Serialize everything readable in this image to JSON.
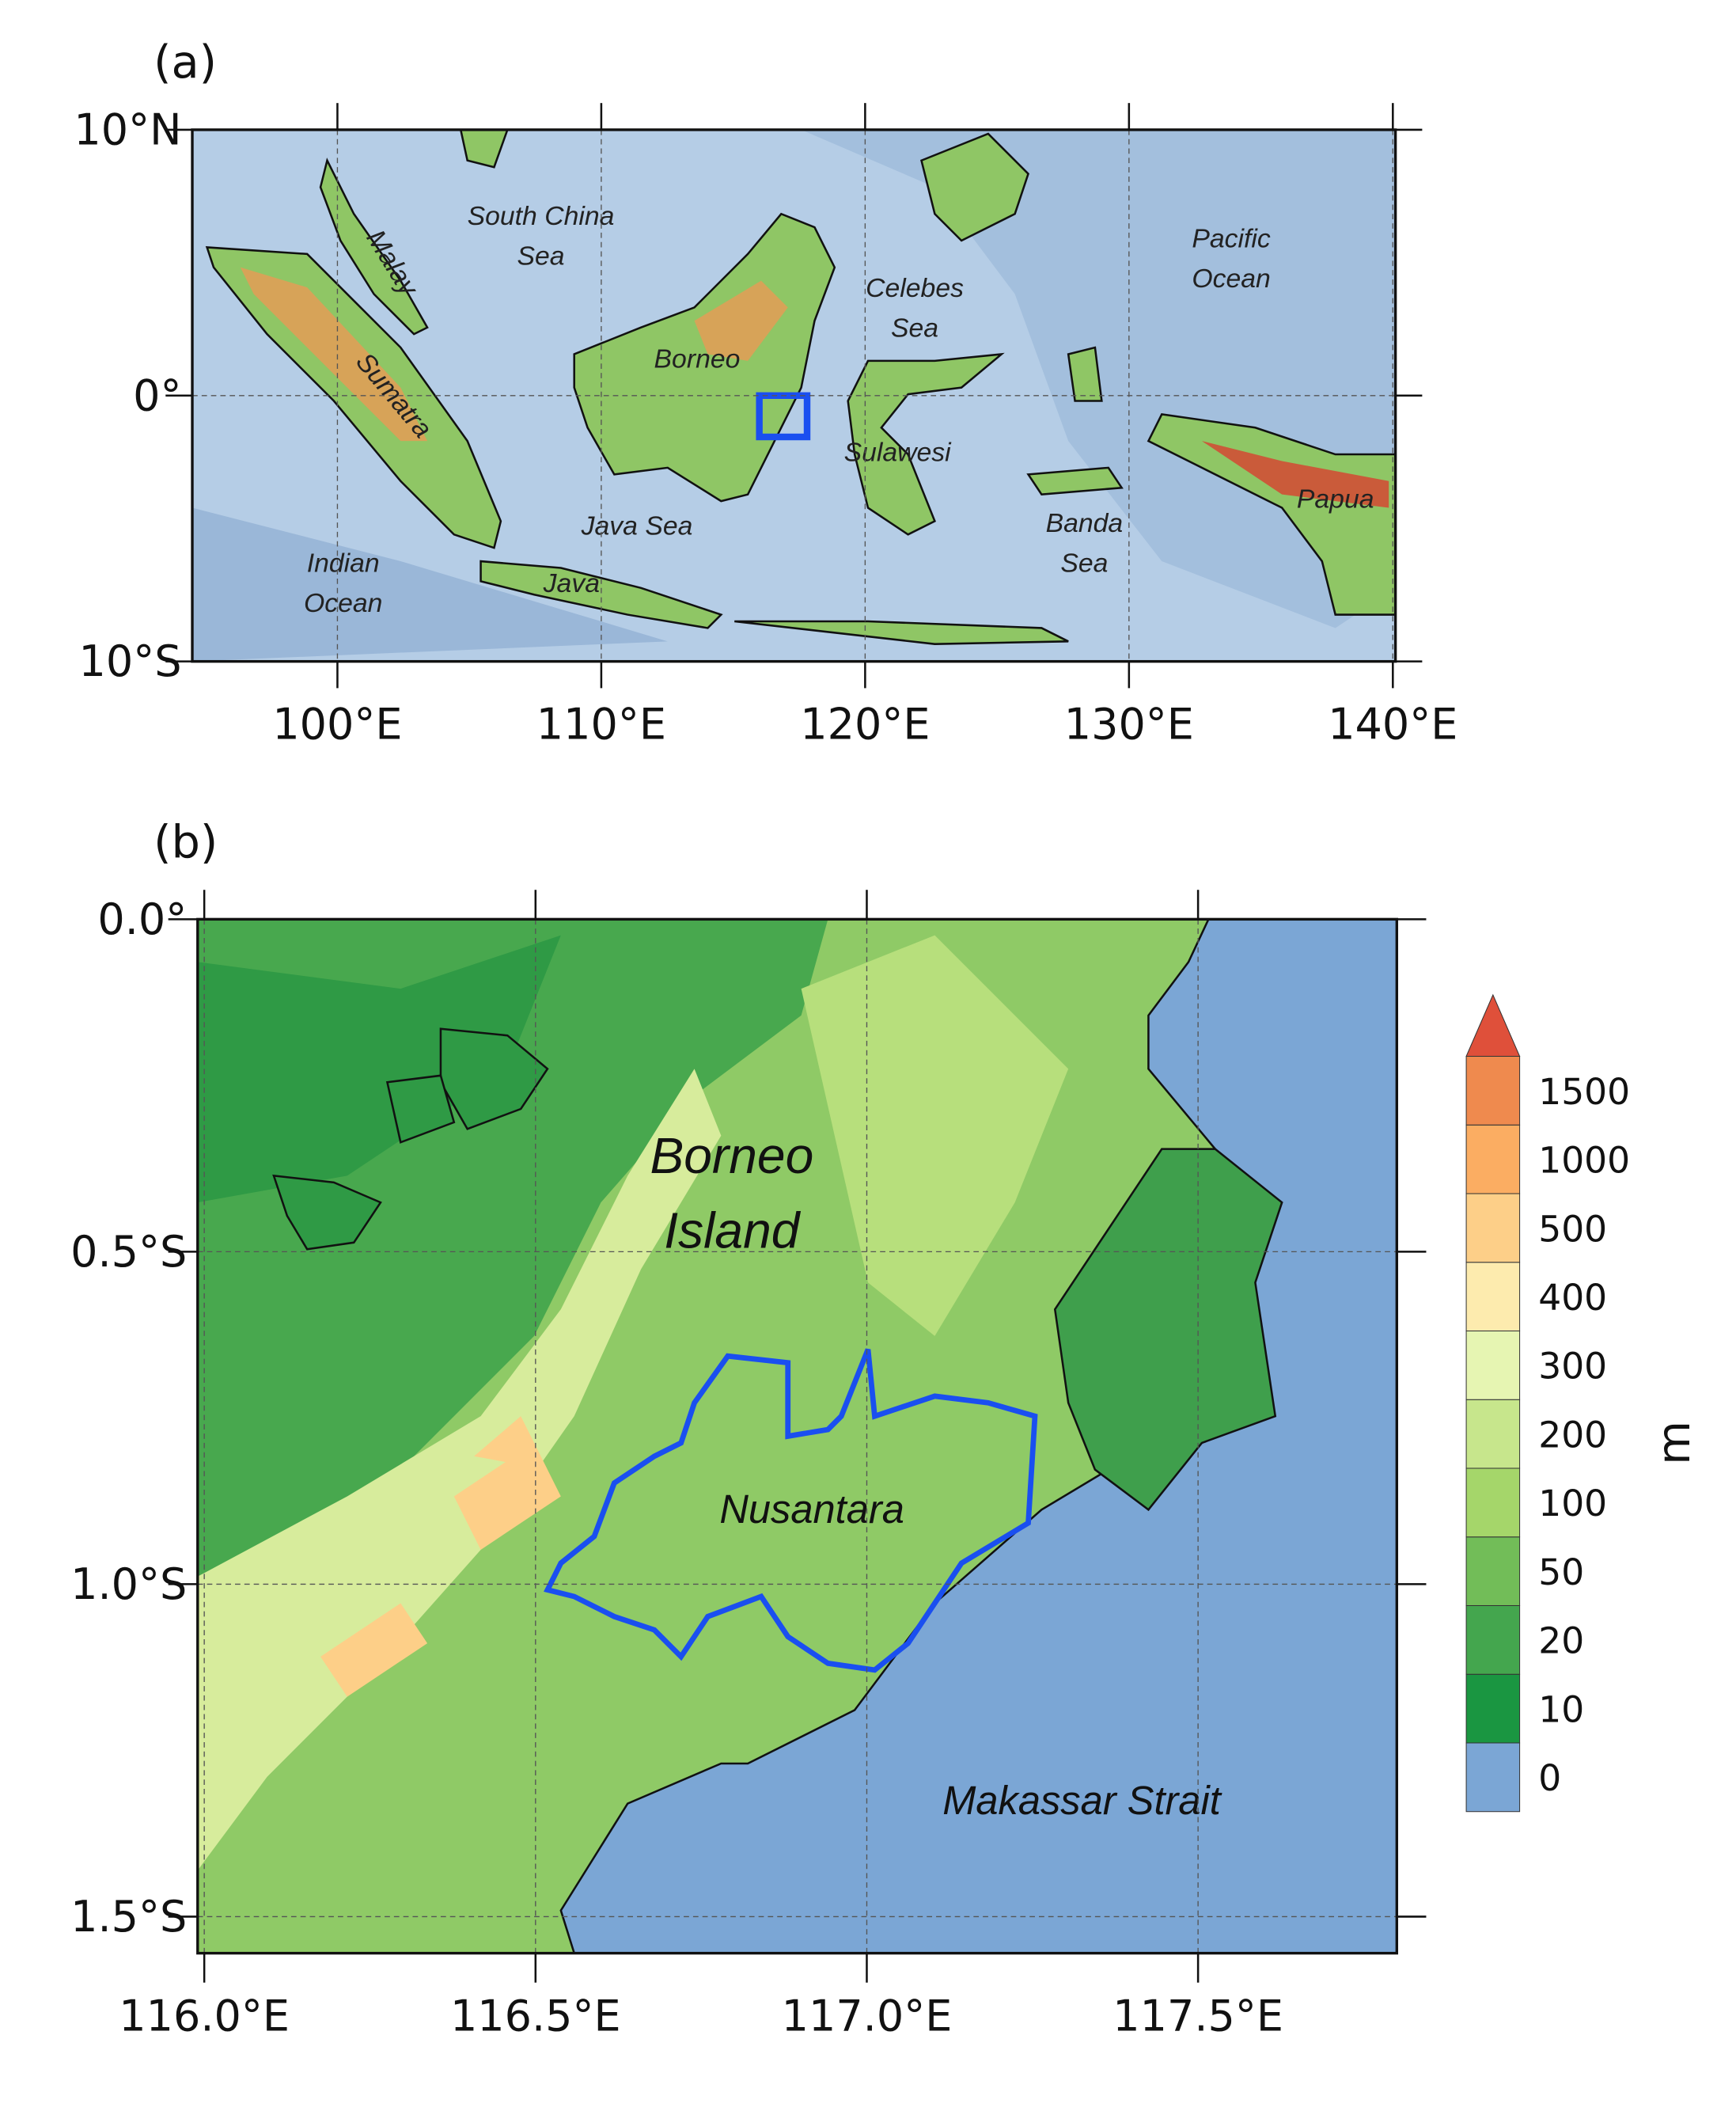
{
  "panel_a": {
    "label": "(a)",
    "xlim": [
      94.5,
      140.1
    ],
    "ylim": [
      -10,
      10
    ],
    "xticks": [
      {
        "value": 100,
        "label": "100°E"
      },
      {
        "value": 110,
        "label": "110°E"
      },
      {
        "value": 120,
        "label": "120°E"
      },
      {
        "value": 130,
        "label": "130°E"
      },
      {
        "value": 140,
        "label": "140°E"
      }
    ],
    "yticks": [
      {
        "value": 10,
        "label": "10°N"
      },
      {
        "value": 0,
        "label": "0°"
      },
      {
        "value": -10,
        "label": "10°S"
      }
    ],
    "places": {
      "south_china_sea": [
        "South China",
        "Sea"
      ],
      "malay": "Malay",
      "sumatra": "Sumatra",
      "borneo": "Borneo",
      "celebes_sea": [
        "Celebes",
        "Sea"
      ],
      "pacific_ocean": [
        "Pacific",
        "Ocean"
      ],
      "sulawesi": "Sulawesi",
      "papua": "Papua",
      "java_sea": "Java Sea",
      "banda_sea": [
        "Banda",
        "Sea"
      ],
      "indian_ocean": [
        "Indian",
        "Ocean"
      ],
      "java": "Java"
    }
  },
  "panel_b": {
    "label": "(b)",
    "xlim": [
      115.99,
      117.8
    ],
    "ylim": [
      -1.555,
      0
    ],
    "xticks": [
      {
        "value": 116.0,
        "label": "116.0°E"
      },
      {
        "value": 116.5,
        "label": "116.5°E"
      },
      {
        "value": 117.0,
        "label": "117.0°E"
      },
      {
        "value": 117.5,
        "label": "117.5°E"
      }
    ],
    "yticks": [
      {
        "value": 0,
        "label": "0.0°"
      },
      {
        "value": -0.5,
        "label": "0.5°S"
      },
      {
        "value": -1.0,
        "label": "1.0°S"
      },
      {
        "value": -1.5,
        "label": "1.5°S"
      }
    ],
    "places": {
      "borneo_island": [
        "Borneo",
        "Island"
      ],
      "nusantara": "Nusantara",
      "makassar_strait": "Makassar Strait"
    }
  },
  "colorbar": {
    "unit": "m",
    "levels": [
      0,
      10,
      20,
      50,
      100,
      200,
      300,
      400,
      500,
      1000,
      1500
    ],
    "colors": [
      "#7ba6d5",
      "#1a9641",
      "#44a64e",
      "#72bd58",
      "#a5d66a",
      "#c7e68c",
      "#e6f5b2",
      "#fdebae",
      "#fdcf88",
      "#fbad62",
      "#ef8a4e"
    ],
    "extend_color": "#df503a"
  }
}
